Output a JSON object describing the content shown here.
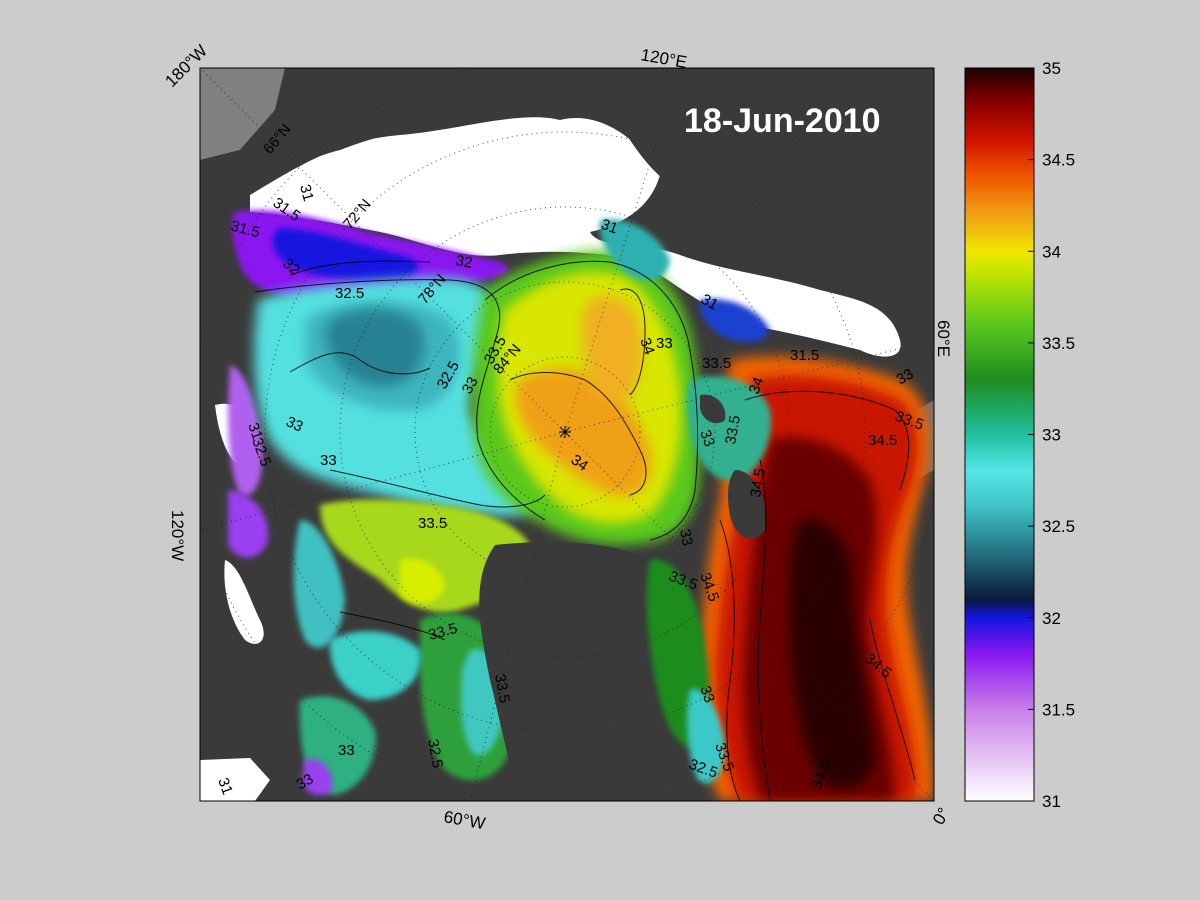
{
  "map": {
    "date": "18-Jun-2010",
    "edge_labels": {
      "top_left": "180°W",
      "top": "120°E",
      "right": "60°E",
      "left": "120°W",
      "bottom": "60°W",
      "bottom_right": "0°"
    },
    "latitude_labels": [
      "66°N",
      "72°N",
      "78°N",
      "84°N"
    ],
    "contour_labels": [
      "31.5",
      "31",
      "32",
      "32.5",
      "33",
      "33.5",
      "34",
      "34.5"
    ],
    "colors": {
      "background": "#cccccc",
      "land": "#3a3a3a",
      "ice": "#ffffff"
    }
  },
  "colorbar": {
    "min": 31,
    "max": 35,
    "ticks": [
      "35",
      "34.5",
      "34",
      "33.5",
      "33",
      "32.5",
      "32",
      "31.5",
      "31"
    ],
    "colormap": [
      {
        "value": 31.0,
        "color": "#ffffff"
      },
      {
        "value": 31.5,
        "color": "#c97ee8"
      },
      {
        "value": 31.8,
        "color": "#8a18f0"
      },
      {
        "value": 32.0,
        "color": "#1414e0"
      },
      {
        "value": 32.1,
        "color": "#0a1a3a"
      },
      {
        "value": 32.3,
        "color": "#1e5e72"
      },
      {
        "value": 32.6,
        "color": "#3fc0c4"
      },
      {
        "value": 32.8,
        "color": "#55e6e6"
      },
      {
        "value": 33.0,
        "color": "#20c0a0"
      },
      {
        "value": 33.3,
        "color": "#1e8c1e"
      },
      {
        "value": 33.6,
        "color": "#5ac81e"
      },
      {
        "value": 33.9,
        "color": "#c8e600"
      },
      {
        "value": 34.0,
        "color": "#f0e600"
      },
      {
        "value": 34.2,
        "color": "#f0a014"
      },
      {
        "value": 34.4,
        "color": "#f05a00"
      },
      {
        "value": 34.6,
        "color": "#d21400"
      },
      {
        "value": 34.8,
        "color": "#8c0000"
      },
      {
        "value": 35.0,
        "color": "#1e0000"
      }
    ]
  }
}
